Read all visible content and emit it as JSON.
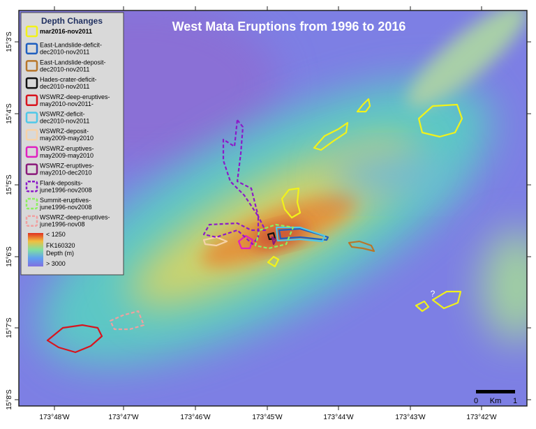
{
  "title": "West Mata Eruptions from 1996 to 2016",
  "legend": {
    "title": "Depth Changes",
    "items": [
      {
        "lines": [
          "mar2016-nov2011"
        ],
        "color": "#f2f21a",
        "dashed": false
      },
      {
        "lines": [
          "East-Landslide-deficit-",
          "dec2010-nov2011"
        ],
        "color": "#1f5fbf",
        "dashed": false
      },
      {
        "lines": [
          "East-Landslide-deposit-",
          "dec2010-nov2011"
        ],
        "color": "#b8762a",
        "dashed": false
      },
      {
        "lines": [
          "Hades-crater-deficit-",
          "dec2010-nov2011"
        ],
        "color": "#111111",
        "dashed": false
      },
      {
        "lines": [
          "WSWRZ-deep-eruptives-",
          "may2010-nov2011-"
        ],
        "color": "#d8141e",
        "dashed": false
      },
      {
        "lines": [
          "WSWRZ-deficit-",
          "dec2010-nov2011"
        ],
        "color": "#4fc8e8",
        "dashed": false
      },
      {
        "lines": [
          "WSWRZ-deposit-",
          "may2009-may2010"
        ],
        "color": "#f6d2a8",
        "dashed": false
      },
      {
        "lines": [
          "WSWRZ-eruptives-",
          "may2009-may2010"
        ],
        "color": "#e020c0",
        "dashed": false
      },
      {
        "lines": [
          "WSWRZ-eruptives-",
          "may2010-dec2010"
        ],
        "color": "#8a1a7a",
        "dashed": false
      },
      {
        "lines": [
          "Flank-deposits-",
          "june1996-nov2008"
        ],
        "color": "#8b1ac8",
        "dashed": true
      },
      {
        "lines": [
          "Summit-eruptives-",
          "june1996-nov2008"
        ],
        "color": "#8cf060",
        "dashed": true
      },
      {
        "lines": [
          "WSWRZ-deep-eruptives-",
          "june1996-nov08"
        ],
        "color": "#f0a0a0",
        "dashed": true
      }
    ],
    "colorbar": {
      "top": "< 1250",
      "name": "FK160320",
      "unit": "Depth (m)",
      "bottom": "> 3000"
    }
  },
  "latitudes": [
    "15°3'S",
    "15°4'S",
    "15°5'S",
    "15°6'S",
    "15°7'S",
    "15°8'S"
  ],
  "longitudes": [
    "173°48'W",
    "173°47'W",
    "173°46'W",
    "173°45'W",
    "173°44'W",
    "173°43'W",
    "173°42'W"
  ],
  "scale": {
    "start": "0",
    "unit": "Km",
    "end": "1"
  },
  "annotation": "?"
}
